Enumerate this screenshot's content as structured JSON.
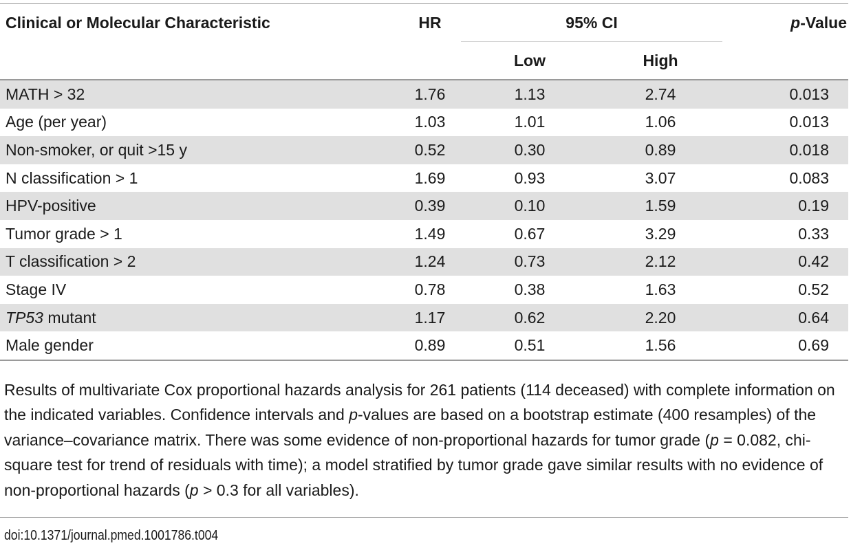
{
  "headers": {
    "characteristic": "Clinical or Molecular Characteristic",
    "hr": "HR",
    "ci": "95% CI",
    "ci_low": "Low",
    "ci_high": "High",
    "p_italic": "p",
    "p_rest": "-Value"
  },
  "rows": [
    {
      "label": "MATH > 32",
      "hr": "1.76",
      "low": "1.13",
      "high": "2.74",
      "p": "0.013"
    },
    {
      "label": "Age (per year)",
      "hr": "1.03",
      "low": "1.01",
      "high": "1.06",
      "p": "0.013"
    },
    {
      "label": "Non-smoker, or quit >15 y",
      "hr": "0.52",
      "low": "0.30",
      "high": "0.89",
      "p": "0.018"
    },
    {
      "label": "N classification > 1",
      "hr": "1.69",
      "low": "0.93",
      "high": "3.07",
      "p": "0.083"
    },
    {
      "label": "HPV-positive",
      "hr": "0.39",
      "low": "0.10",
      "high": "1.59",
      "p": "0.19"
    },
    {
      "label": "Tumor grade > 1",
      "hr": "1.49",
      "low": "0.67",
      "high": "3.29",
      "p": "0.33"
    },
    {
      "label": "T classification > 2",
      "hr": "1.24",
      "low": "0.73",
      "high": "2.12",
      "p": "0.42"
    },
    {
      "label": "Stage IV",
      "hr": "0.78",
      "low": "0.38",
      "high": "1.63",
      "p": "0.52"
    },
    {
      "label_italic": "TP53",
      "label_rest": " mutant",
      "hr": "1.17",
      "low": "0.62",
      "high": "2.20",
      "p": "0.64"
    },
    {
      "label": "Male gender",
      "hr": "0.89",
      "low": "0.51",
      "high": "1.56",
      "p": "0.69"
    }
  ],
  "caption": {
    "s1": "Results of multivariate Cox proportional hazards analysis for 261 patients (114 deceased) with complete information on the indicated variables. Confidence intervals and ",
    "i1": "p",
    "s2": "-values are based on a bootstrap estimate (400 resamples) of the variance–covariance matrix. There was some evidence of non-proportional hazards for tumor grade (",
    "i2": "p",
    "s3": " = 0.082, chi-square test for trend of residuals with time); a model stratified by tumor grade gave similar results with no evidence of non-proportional hazards (",
    "i3": "p",
    "s4": " > 0.3 for all variables)."
  },
  "doi": "doi:10.1371/journal.pmed.1001786.t004"
}
